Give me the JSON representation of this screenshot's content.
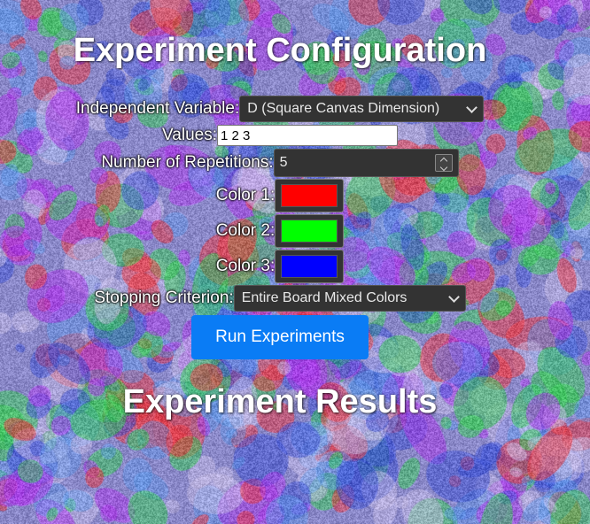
{
  "config_title": "Experiment Configuration",
  "results_title": "Experiment Results",
  "form": {
    "independent_variable": {
      "label": "Independent Variable:",
      "selected": "D (Square Canvas Dimension)"
    },
    "values": {
      "label": "Values:",
      "value": "1 2 3"
    },
    "repetitions": {
      "label": "Number of Repetitions:",
      "value": "5"
    },
    "colors": [
      {
        "label": "Color 1:",
        "value": "#ff0000"
      },
      {
        "label": "Color 2:",
        "value": "#00ff00"
      },
      {
        "label": "Color 3:",
        "value": "#0000ff"
      }
    ],
    "stopping_criterion": {
      "label": "Stopping Criterion:",
      "selected": "Entire Board Mixed Colors"
    }
  },
  "run_button": "Run Experiments",
  "icons": {
    "dropdown": "chevron-down-icon",
    "spinner": "spinner-icon"
  }
}
